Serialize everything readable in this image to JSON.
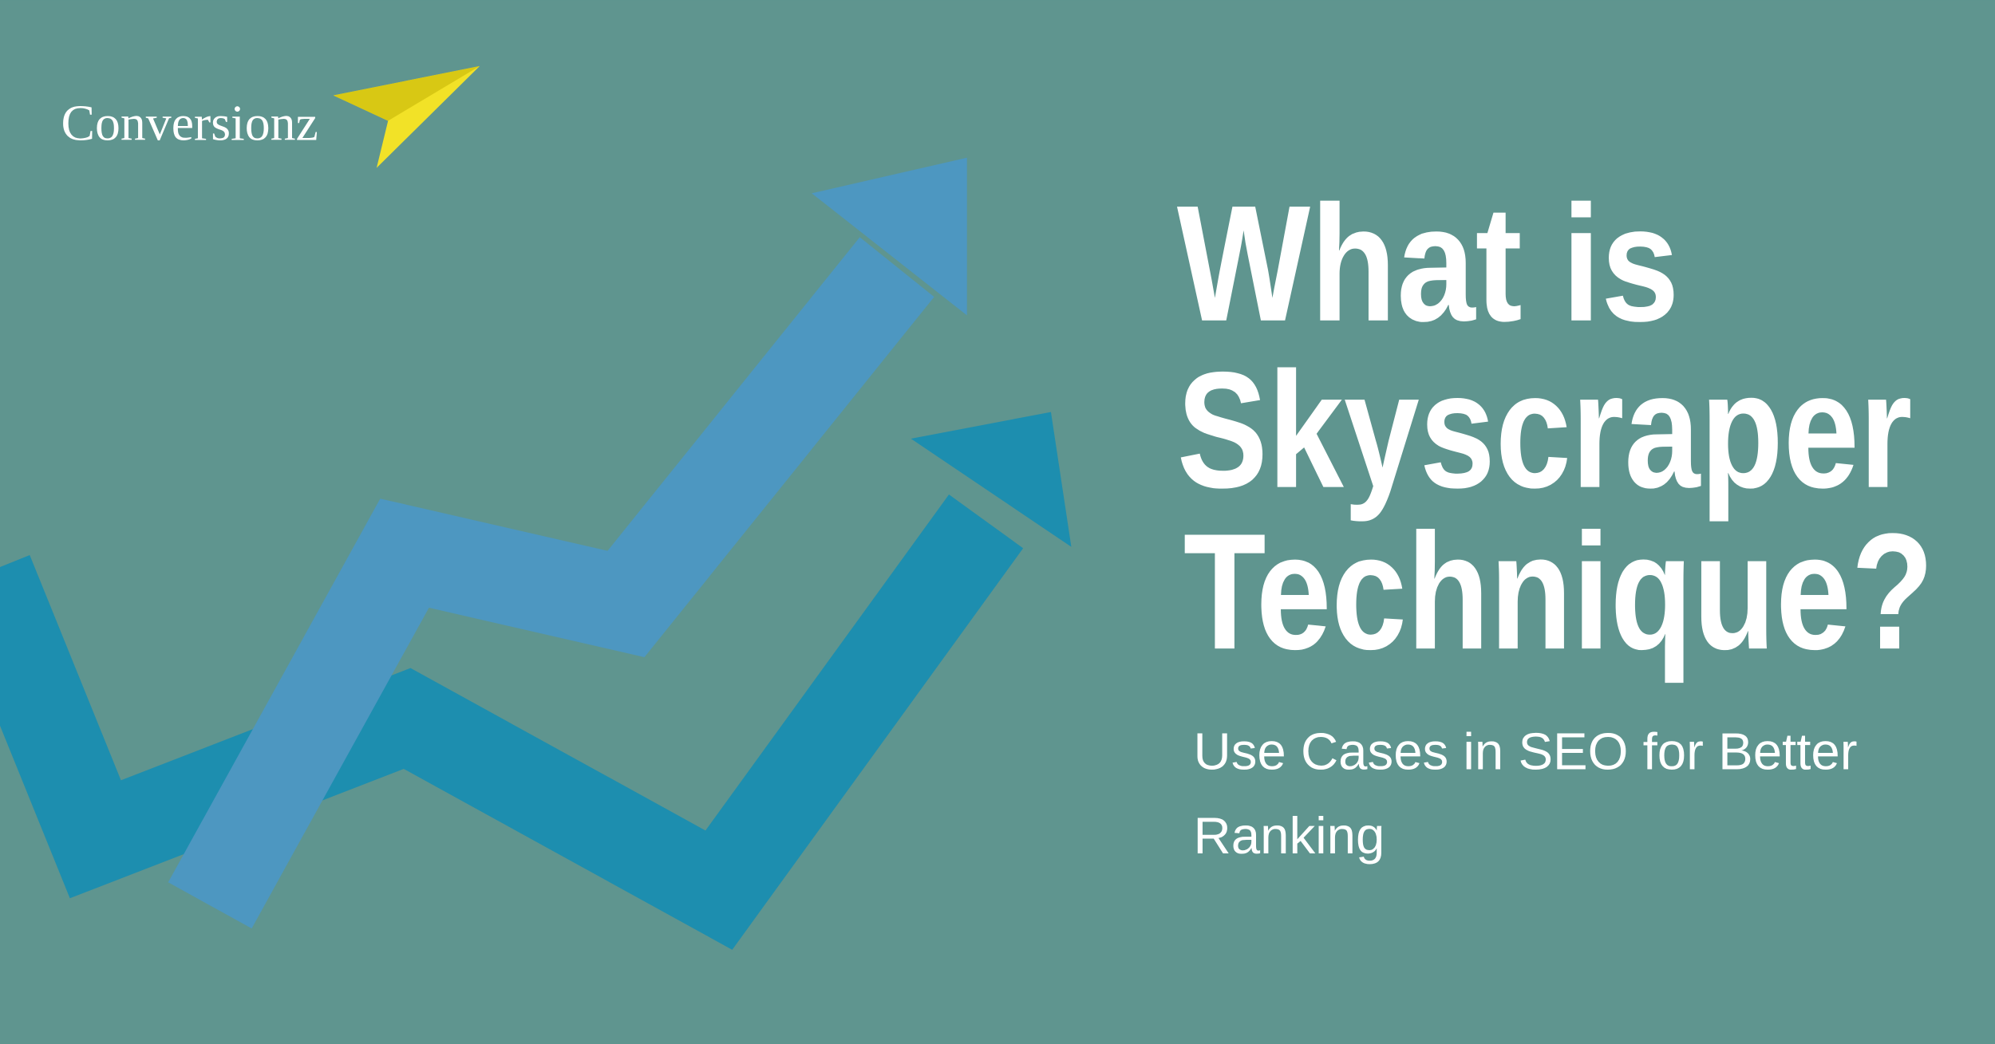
{
  "logo": {
    "text": "Conversionz"
  },
  "headline": {
    "lines": [
      "What is",
      "Skyscraper",
      "Technique?"
    ]
  },
  "subtitle": "Use Cases in SEO for Better Ranking"
}
